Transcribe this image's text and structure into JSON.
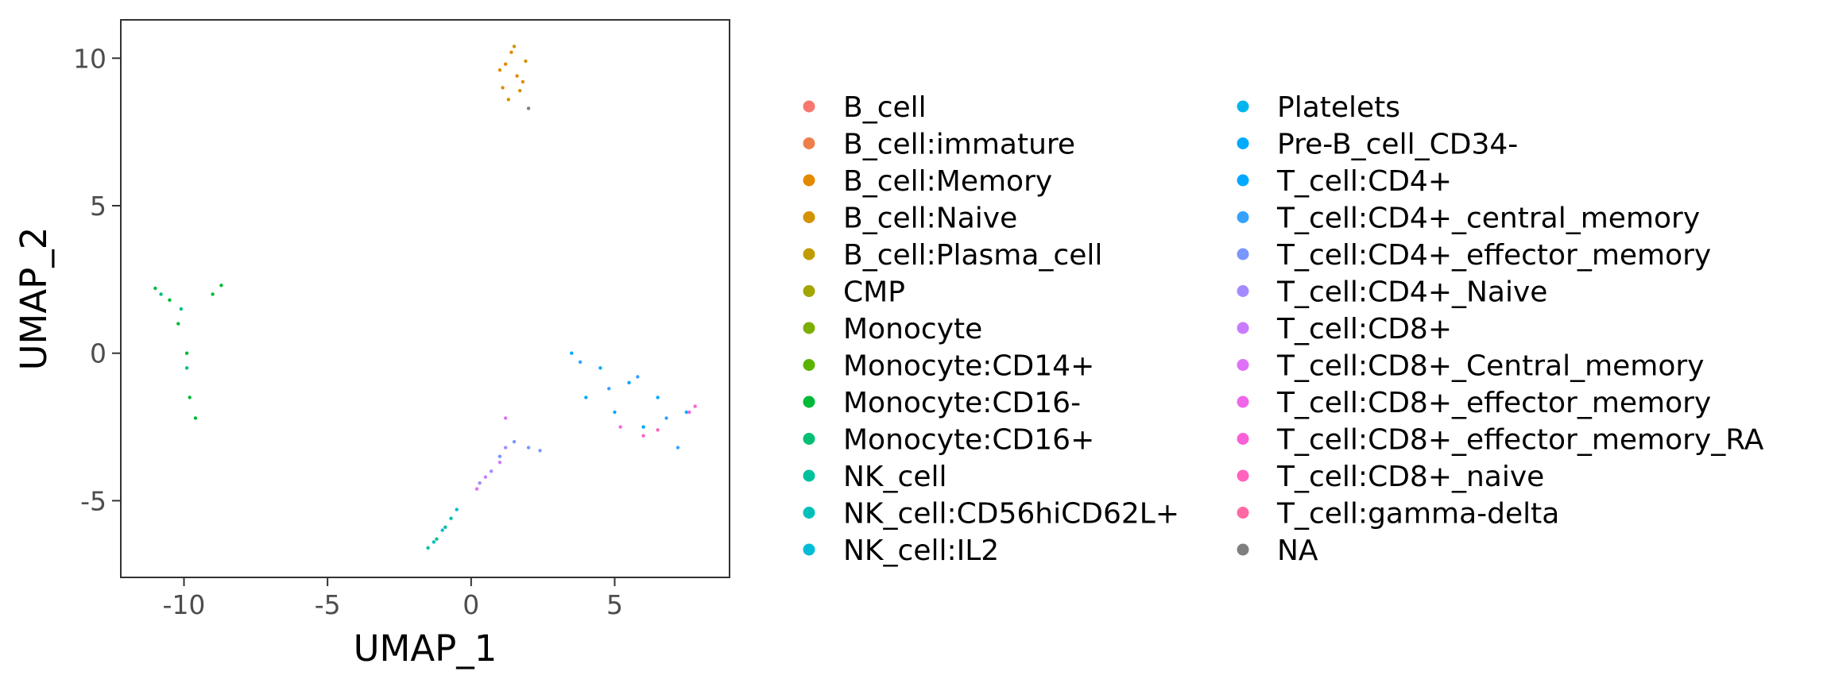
{
  "chart_data": {
    "type": "scatter",
    "xlabel": "UMAP_1",
    "ylabel": "UMAP_2",
    "xlim": [
      -12.2,
      9.0
    ],
    "ylim": [
      -7.6,
      11.3
    ],
    "x_ticks": [
      -10,
      -5,
      0,
      5
    ],
    "x_tick_labels": [
      "-10",
      "-5",
      "0",
      "5"
    ],
    "y_ticks": [
      -5,
      0,
      5,
      10
    ],
    "y_tick_labels": [
      "-5",
      "0",
      "5",
      "10"
    ],
    "grid": false,
    "legend_position": "right",
    "series": [
      {
        "name": "B_cell",
        "color": "#F8766D",
        "points": []
      },
      {
        "name": "B_cell:immature",
        "color": "#EF7F48",
        "points": []
      },
      {
        "name": "B_cell:Memory",
        "color": "#E38900",
        "points": [
          [
            1.2,
            9.8
          ],
          [
            1.4,
            10.2
          ],
          [
            1.6,
            9.4
          ],
          [
            1.1,
            9.0
          ],
          [
            1.8,
            9.2
          ]
        ]
      },
      {
        "name": "B_cell:Naive",
        "color": "#D39200",
        "points": [
          [
            1.0,
            9.6
          ],
          [
            1.5,
            10.4
          ],
          [
            1.7,
            8.9
          ],
          [
            1.3,
            8.6
          ],
          [
            1.9,
            9.9
          ]
        ]
      },
      {
        "name": "B_cell:Plasma_cell",
        "color": "#C09B00",
        "points": []
      },
      {
        "name": "CMP",
        "color": "#A3A500",
        "points": []
      },
      {
        "name": "Monocyte",
        "color": "#7CAE00",
        "points": []
      },
      {
        "name": "Monocyte:CD14+",
        "color": "#5BB300",
        "points": []
      },
      {
        "name": "Monocyte:CD16-",
        "color": "#00BA38",
        "points": [
          [
            -11.0,
            2.2
          ],
          [
            -10.5,
            1.8
          ],
          [
            -10.2,
            1.0
          ],
          [
            -9.9,
            0.0
          ],
          [
            -9.8,
            -1.5
          ],
          [
            -9.6,
            -2.2
          ],
          [
            -9.0,
            2.0
          ],
          [
            -8.7,
            2.3
          ]
        ]
      },
      {
        "name": "Monocyte:CD16+",
        "color": "#00BF74",
        "points": [
          [
            -10.8,
            2.0
          ],
          [
            -10.1,
            1.5
          ],
          [
            -9.9,
            -0.5
          ]
        ]
      },
      {
        "name": "NK_cell",
        "color": "#00C19A",
        "points": [
          [
            -1.5,
            -6.6
          ],
          [
            -1.2,
            -6.3
          ],
          [
            -0.9,
            -5.9
          ]
        ]
      },
      {
        "name": "NK_cell:CD56hiCD62L+",
        "color": "#00C0B9",
        "points": [
          [
            -1.3,
            -6.4
          ],
          [
            -0.7,
            -5.6
          ]
        ]
      },
      {
        "name": "NK_cell:IL2",
        "color": "#00BCD6",
        "points": [
          [
            -1.0,
            -6.0
          ],
          [
            -0.5,
            -5.3
          ]
        ]
      },
      {
        "name": "Platelets",
        "color": "#00B5EE",
        "points": []
      },
      {
        "name": "Pre-B_cell_CD34-",
        "color": "#00ABFD",
        "points": []
      },
      {
        "name": "T_cell:CD4+",
        "color": "#00A9FF",
        "points": [
          [
            3.5,
            0.0
          ],
          [
            4.5,
            -0.5
          ],
          [
            5.5,
            -1.0
          ],
          [
            6.5,
            -1.5
          ],
          [
            7.5,
            -2.0
          ],
          [
            4.0,
            -1.5
          ],
          [
            5.0,
            -2.0
          ],
          [
            6.0,
            -2.5
          ]
        ]
      },
      {
        "name": "T_cell:CD4+_central_memory",
        "color": "#35A2FF",
        "points": [
          [
            3.8,
            -0.3
          ],
          [
            4.8,
            -1.2
          ],
          [
            5.8,
            -0.8
          ],
          [
            6.8,
            -2.2
          ],
          [
            7.2,
            -3.2
          ]
        ]
      },
      {
        "name": "T_cell:CD4+_effector_memory",
        "color": "#7A96FF",
        "points": [
          [
            1.0,
            -3.5
          ],
          [
            1.5,
            -3.0
          ],
          [
            2.0,
            -3.2
          ],
          [
            2.4,
            -3.3
          ]
        ]
      },
      {
        "name": "T_cell:CD4+_Naive",
        "color": "#A58AFF",
        "points": [
          [
            0.3,
            -4.4
          ],
          [
            0.7,
            -4.0
          ],
          [
            1.2,
            -3.2
          ]
        ]
      },
      {
        "name": "T_cell:CD8+",
        "color": "#C77CFF",
        "points": [
          [
            0.5,
            -4.2
          ],
          [
            1.0,
            -3.7
          ]
        ]
      },
      {
        "name": "T_cell:CD8+_Central_memory",
        "color": "#DF70F8",
        "points": [
          [
            0.2,
            -4.6
          ],
          [
            1.2,
            -2.2
          ]
        ]
      },
      {
        "name": "T_cell:CD8+_effector_memory",
        "color": "#F066EA",
        "points": [
          [
            5.2,
            -2.5
          ],
          [
            7.6,
            -2.0
          ]
        ]
      },
      {
        "name": "T_cell:CD8+_effector_memory_RA",
        "color": "#FB61D7",
        "points": [
          [
            6.0,
            -2.8
          ],
          [
            7.8,
            -1.8
          ]
        ]
      },
      {
        "name": "T_cell:CD8+_naive",
        "color": "#FF62BF",
        "points": [
          [
            6.5,
            -2.6
          ]
        ]
      },
      {
        "name": "T_cell:gamma-delta",
        "color": "#FF69A4",
        "points": []
      },
      {
        "name": "NA",
        "color": "#7F7F7F",
        "points": [
          [
            2.0,
            8.3
          ]
        ]
      }
    ]
  }
}
